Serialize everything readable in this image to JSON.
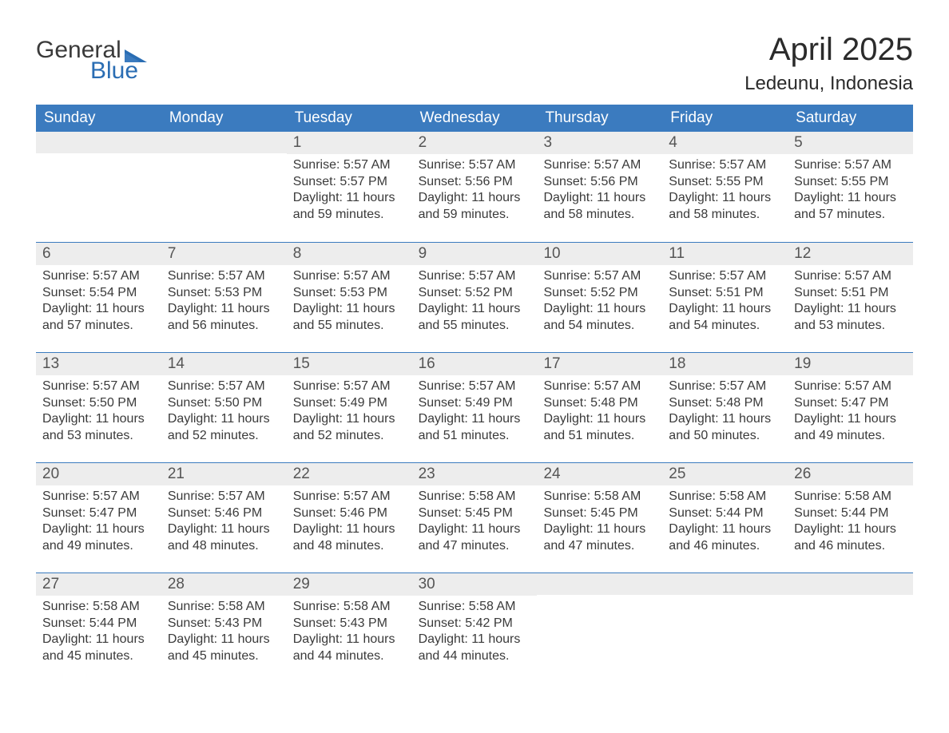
{
  "logo": {
    "line1": "General",
    "line2": "Blue"
  },
  "title": "April 2025",
  "location": "Ledeunu, Indonesia",
  "colors": {
    "header_bg": "#3b7bbf",
    "header_text": "#ffffff",
    "daynum_bg": "#ededed",
    "daynum_text": "#555555",
    "body_text": "#3a3a3a",
    "border": "#3b7bbf",
    "logo_gray": "#3a3a3a",
    "logo_blue": "#2a6db3",
    "background": "#ffffff"
  },
  "typography": {
    "title_fontsize": 40,
    "location_fontsize": 24,
    "dayheader_fontsize": 19,
    "daynum_fontsize": 19,
    "body_fontsize": 16,
    "logo_fontsize": 30
  },
  "day_headers": [
    "Sunday",
    "Monday",
    "Tuesday",
    "Wednesday",
    "Thursday",
    "Friday",
    "Saturday"
  ],
  "weeks": [
    [
      {
        "num": "",
        "sunrise": "",
        "sunset": "",
        "daylight": ""
      },
      {
        "num": "",
        "sunrise": "",
        "sunset": "",
        "daylight": ""
      },
      {
        "num": "1",
        "sunrise": "Sunrise: 5:57 AM",
        "sunset": "Sunset: 5:57 PM",
        "daylight": "Daylight: 11 hours and 59 minutes."
      },
      {
        "num": "2",
        "sunrise": "Sunrise: 5:57 AM",
        "sunset": "Sunset: 5:56 PM",
        "daylight": "Daylight: 11 hours and 59 minutes."
      },
      {
        "num": "3",
        "sunrise": "Sunrise: 5:57 AM",
        "sunset": "Sunset: 5:56 PM",
        "daylight": "Daylight: 11 hours and 58 minutes."
      },
      {
        "num": "4",
        "sunrise": "Sunrise: 5:57 AM",
        "sunset": "Sunset: 5:55 PM",
        "daylight": "Daylight: 11 hours and 58 minutes."
      },
      {
        "num": "5",
        "sunrise": "Sunrise: 5:57 AM",
        "sunset": "Sunset: 5:55 PM",
        "daylight": "Daylight: 11 hours and 57 minutes."
      }
    ],
    [
      {
        "num": "6",
        "sunrise": "Sunrise: 5:57 AM",
        "sunset": "Sunset: 5:54 PM",
        "daylight": "Daylight: 11 hours and 57 minutes."
      },
      {
        "num": "7",
        "sunrise": "Sunrise: 5:57 AM",
        "sunset": "Sunset: 5:53 PM",
        "daylight": "Daylight: 11 hours and 56 minutes."
      },
      {
        "num": "8",
        "sunrise": "Sunrise: 5:57 AM",
        "sunset": "Sunset: 5:53 PM",
        "daylight": "Daylight: 11 hours and 55 minutes."
      },
      {
        "num": "9",
        "sunrise": "Sunrise: 5:57 AM",
        "sunset": "Sunset: 5:52 PM",
        "daylight": "Daylight: 11 hours and 55 minutes."
      },
      {
        "num": "10",
        "sunrise": "Sunrise: 5:57 AM",
        "sunset": "Sunset: 5:52 PM",
        "daylight": "Daylight: 11 hours and 54 minutes."
      },
      {
        "num": "11",
        "sunrise": "Sunrise: 5:57 AM",
        "sunset": "Sunset: 5:51 PM",
        "daylight": "Daylight: 11 hours and 54 minutes."
      },
      {
        "num": "12",
        "sunrise": "Sunrise: 5:57 AM",
        "sunset": "Sunset: 5:51 PM",
        "daylight": "Daylight: 11 hours and 53 minutes."
      }
    ],
    [
      {
        "num": "13",
        "sunrise": "Sunrise: 5:57 AM",
        "sunset": "Sunset: 5:50 PM",
        "daylight": "Daylight: 11 hours and 53 minutes."
      },
      {
        "num": "14",
        "sunrise": "Sunrise: 5:57 AM",
        "sunset": "Sunset: 5:50 PM",
        "daylight": "Daylight: 11 hours and 52 minutes."
      },
      {
        "num": "15",
        "sunrise": "Sunrise: 5:57 AM",
        "sunset": "Sunset: 5:49 PM",
        "daylight": "Daylight: 11 hours and 52 minutes."
      },
      {
        "num": "16",
        "sunrise": "Sunrise: 5:57 AM",
        "sunset": "Sunset: 5:49 PM",
        "daylight": "Daylight: 11 hours and 51 minutes."
      },
      {
        "num": "17",
        "sunrise": "Sunrise: 5:57 AM",
        "sunset": "Sunset: 5:48 PM",
        "daylight": "Daylight: 11 hours and 51 minutes."
      },
      {
        "num": "18",
        "sunrise": "Sunrise: 5:57 AM",
        "sunset": "Sunset: 5:48 PM",
        "daylight": "Daylight: 11 hours and 50 minutes."
      },
      {
        "num": "19",
        "sunrise": "Sunrise: 5:57 AM",
        "sunset": "Sunset: 5:47 PM",
        "daylight": "Daylight: 11 hours and 49 minutes."
      }
    ],
    [
      {
        "num": "20",
        "sunrise": "Sunrise: 5:57 AM",
        "sunset": "Sunset: 5:47 PM",
        "daylight": "Daylight: 11 hours and 49 minutes."
      },
      {
        "num": "21",
        "sunrise": "Sunrise: 5:57 AM",
        "sunset": "Sunset: 5:46 PM",
        "daylight": "Daylight: 11 hours and 48 minutes."
      },
      {
        "num": "22",
        "sunrise": "Sunrise: 5:57 AM",
        "sunset": "Sunset: 5:46 PM",
        "daylight": "Daylight: 11 hours and 48 minutes."
      },
      {
        "num": "23",
        "sunrise": "Sunrise: 5:58 AM",
        "sunset": "Sunset: 5:45 PM",
        "daylight": "Daylight: 11 hours and 47 minutes."
      },
      {
        "num": "24",
        "sunrise": "Sunrise: 5:58 AM",
        "sunset": "Sunset: 5:45 PM",
        "daylight": "Daylight: 11 hours and 47 minutes."
      },
      {
        "num": "25",
        "sunrise": "Sunrise: 5:58 AM",
        "sunset": "Sunset: 5:44 PM",
        "daylight": "Daylight: 11 hours and 46 minutes."
      },
      {
        "num": "26",
        "sunrise": "Sunrise: 5:58 AM",
        "sunset": "Sunset: 5:44 PM",
        "daylight": "Daylight: 11 hours and 46 minutes."
      }
    ],
    [
      {
        "num": "27",
        "sunrise": "Sunrise: 5:58 AM",
        "sunset": "Sunset: 5:44 PM",
        "daylight": "Daylight: 11 hours and 45 minutes."
      },
      {
        "num": "28",
        "sunrise": "Sunrise: 5:58 AM",
        "sunset": "Sunset: 5:43 PM",
        "daylight": "Daylight: 11 hours and 45 minutes."
      },
      {
        "num": "29",
        "sunrise": "Sunrise: 5:58 AM",
        "sunset": "Sunset: 5:43 PM",
        "daylight": "Daylight: 11 hours and 44 minutes."
      },
      {
        "num": "30",
        "sunrise": "Sunrise: 5:58 AM",
        "sunset": "Sunset: 5:42 PM",
        "daylight": "Daylight: 11 hours and 44 minutes."
      },
      {
        "num": "",
        "sunrise": "",
        "sunset": "",
        "daylight": ""
      },
      {
        "num": "",
        "sunrise": "",
        "sunset": "",
        "daylight": ""
      },
      {
        "num": "",
        "sunrise": "",
        "sunset": "",
        "daylight": ""
      }
    ]
  ]
}
